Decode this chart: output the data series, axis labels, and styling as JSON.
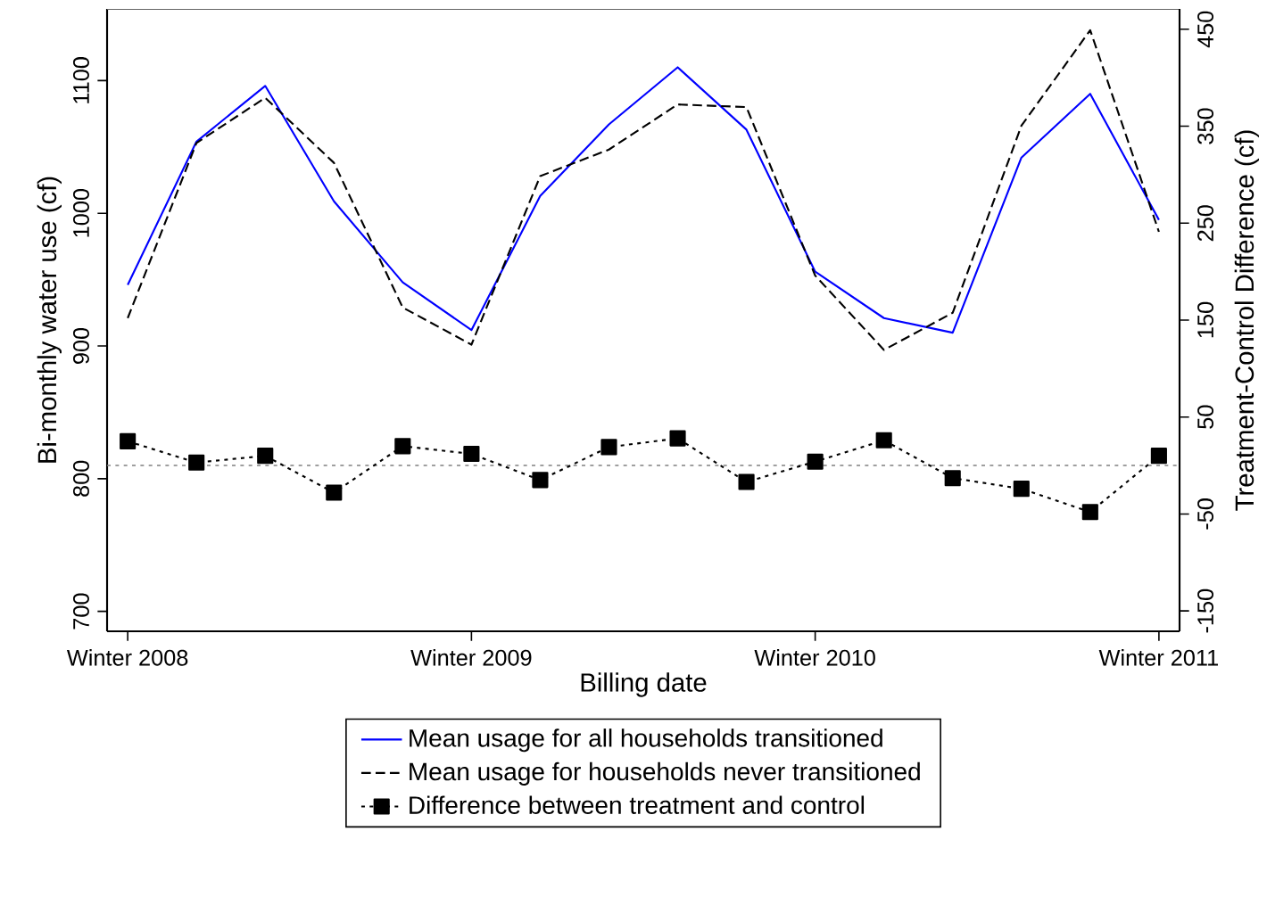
{
  "chart_data": {
    "type": "line",
    "xlabel": "Billing date",
    "ylabel": "Bi-monthly water use (cf)",
    "y2label": "Treatment-Control Difference (cf)",
    "categories": [
      "Winter 2008",
      null,
      null,
      null,
      null,
      "Winter 2009",
      null,
      null,
      null,
      null,
      "Winter 2010",
      null,
      null,
      null,
      null,
      "Winter 2011"
    ],
    "ylim": [
      685,
      1154
    ],
    "yticks": [
      700,
      800,
      900,
      1000,
      1100
    ],
    "y2lim": [
      -171,
      471
    ],
    "y2ticks": [
      -150,
      -50,
      50,
      150,
      250,
      350,
      450
    ],
    "legend": "bottom",
    "grid": false,
    "ref_lines": [
      {
        "axis": "y2",
        "value": 0,
        "color": "#808080",
        "line_style": "dotted"
      }
    ],
    "series": [
      {
        "name": "Mean usage for all households transitioned",
        "color": "#0000ff",
        "line_style": "solid",
        "marker": "none",
        "values": [
          946,
          1054,
          1096,
          1009,
          948,
          912,
          1013,
          1067,
          1110,
          1063,
          956,
          921,
          910,
          1042,
          1090,
          995
        ]
      },
      {
        "name": "Mean usage for households never transitioned",
        "color": "#000000",
        "line_style": "dashed",
        "marker": "none",
        "values": [
          921,
          1053,
          1087,
          1038,
          929,
          901,
          1028,
          1048,
          1082,
          1080,
          953,
          897,
          925,
          1066,
          1138,
          986
        ]
      },
      {
        "name": "Difference between treatment and control",
        "color": "#000000",
        "line_style": "dotted",
        "marker": "square",
        "axis": "y2",
        "values": [
          25,
          3,
          10,
          -28,
          20,
          12,
          -15,
          19,
          28,
          -17,
          4,
          26,
          -13,
          -24,
          -48,
          10
        ]
      }
    ]
  }
}
